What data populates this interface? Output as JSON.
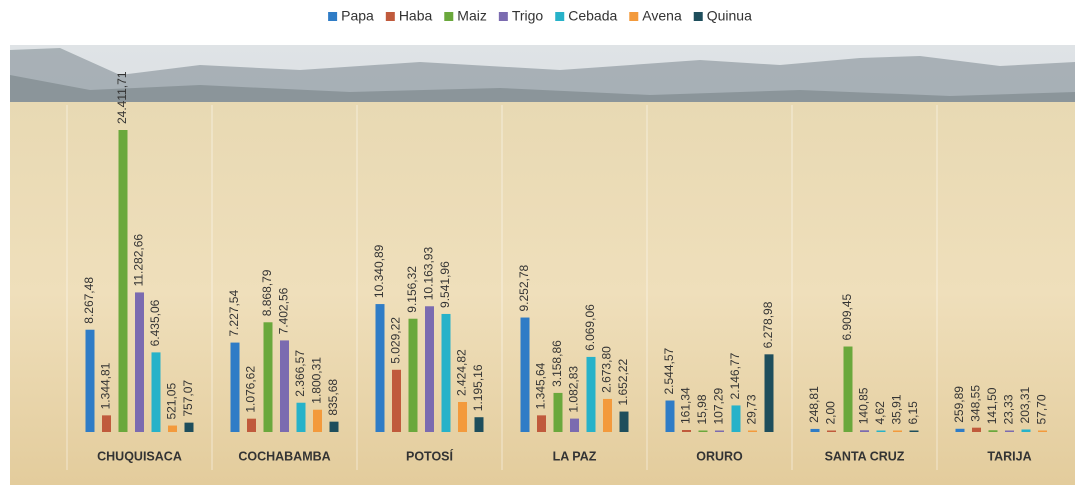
{
  "chart_data": {
    "type": "bar",
    "categories": [
      "CHUQUISACA",
      "COCHABAMBA",
      "POTOSÍ",
      "LA PAZ",
      "ORURO",
      "SANTA CRUZ",
      "TARIJA"
    ],
    "series": [
      {
        "name": "Papa",
        "color": "#2f7cc6",
        "values": [
          8267.48,
          7227.54,
          10340.89,
          9252.78,
          2544.57,
          248.81,
          259.89
        ],
        "value_labels": [
          "8.267,48",
          "7.227,54",
          "10.340,89",
          "9.252,78",
          "2.544,57",
          "248,81",
          "259,89"
        ]
      },
      {
        "name": "Haba",
        "color": "#c05a3c",
        "values": [
          1344.81,
          1076.62,
          5029.22,
          1345.64,
          161.34,
          2.0,
          348.55
        ],
        "value_labels": [
          "1.344,81",
          "1.076,62",
          "5.029,22",
          "1.345,64",
          "161,34",
          "2,00",
          "348,55"
        ]
      },
      {
        "name": "Maiz",
        "color": "#6aa83c",
        "values": [
          24411.71,
          8868.79,
          9156.32,
          3158.86,
          15.98,
          6909.45,
          141.5
        ],
        "value_labels": [
          "24.411,71",
          "8.868,79",
          "9.156,32",
          "3.158,86",
          "15,98",
          "6.909,45",
          "141,50"
        ]
      },
      {
        "name": "Trigo",
        "color": "#7b6bb0",
        "values": [
          11282.66,
          7402.56,
          10163.93,
          1082.83,
          107.29,
          140.85,
          23.33
        ],
        "value_labels": [
          "11.282,66",
          "7.402,56",
          "10.163,93",
          "1.082,83",
          "107,29",
          "140,85",
          "23,33"
        ]
      },
      {
        "name": "Cebada",
        "color": "#27b2c9",
        "values": [
          6435.06,
          2366.57,
          9541.96,
          6069.06,
          2146.77,
          4.62,
          203.31
        ],
        "value_labels": [
          "6.435,06",
          "2.366,57",
          "9.541,96",
          "6.069,06",
          "2.146,77",
          "4,62",
          "203,31"
        ]
      },
      {
        "name": "Avena",
        "color": "#f39a3c",
        "values": [
          521.05,
          1800.31,
          2424.82,
          2673.8,
          29.73,
          35.91,
          57.7
        ],
        "value_labels": [
          "521,05",
          "1.800,31",
          "2.424,82",
          "2.673,80",
          "29,73",
          "35,91",
          "57,70"
        ]
      },
      {
        "name": "Quinua",
        "color": "#1e4e5c",
        "values": [
          757.07,
          835.68,
          1195.16,
          1652.22,
          6278.98,
          6.15,
          null
        ],
        "value_labels": [
          "757,07",
          "835,68",
          "1.195,16",
          "1.652,22",
          "6.278,98",
          "6,15",
          null
        ]
      }
    ]
  }
}
